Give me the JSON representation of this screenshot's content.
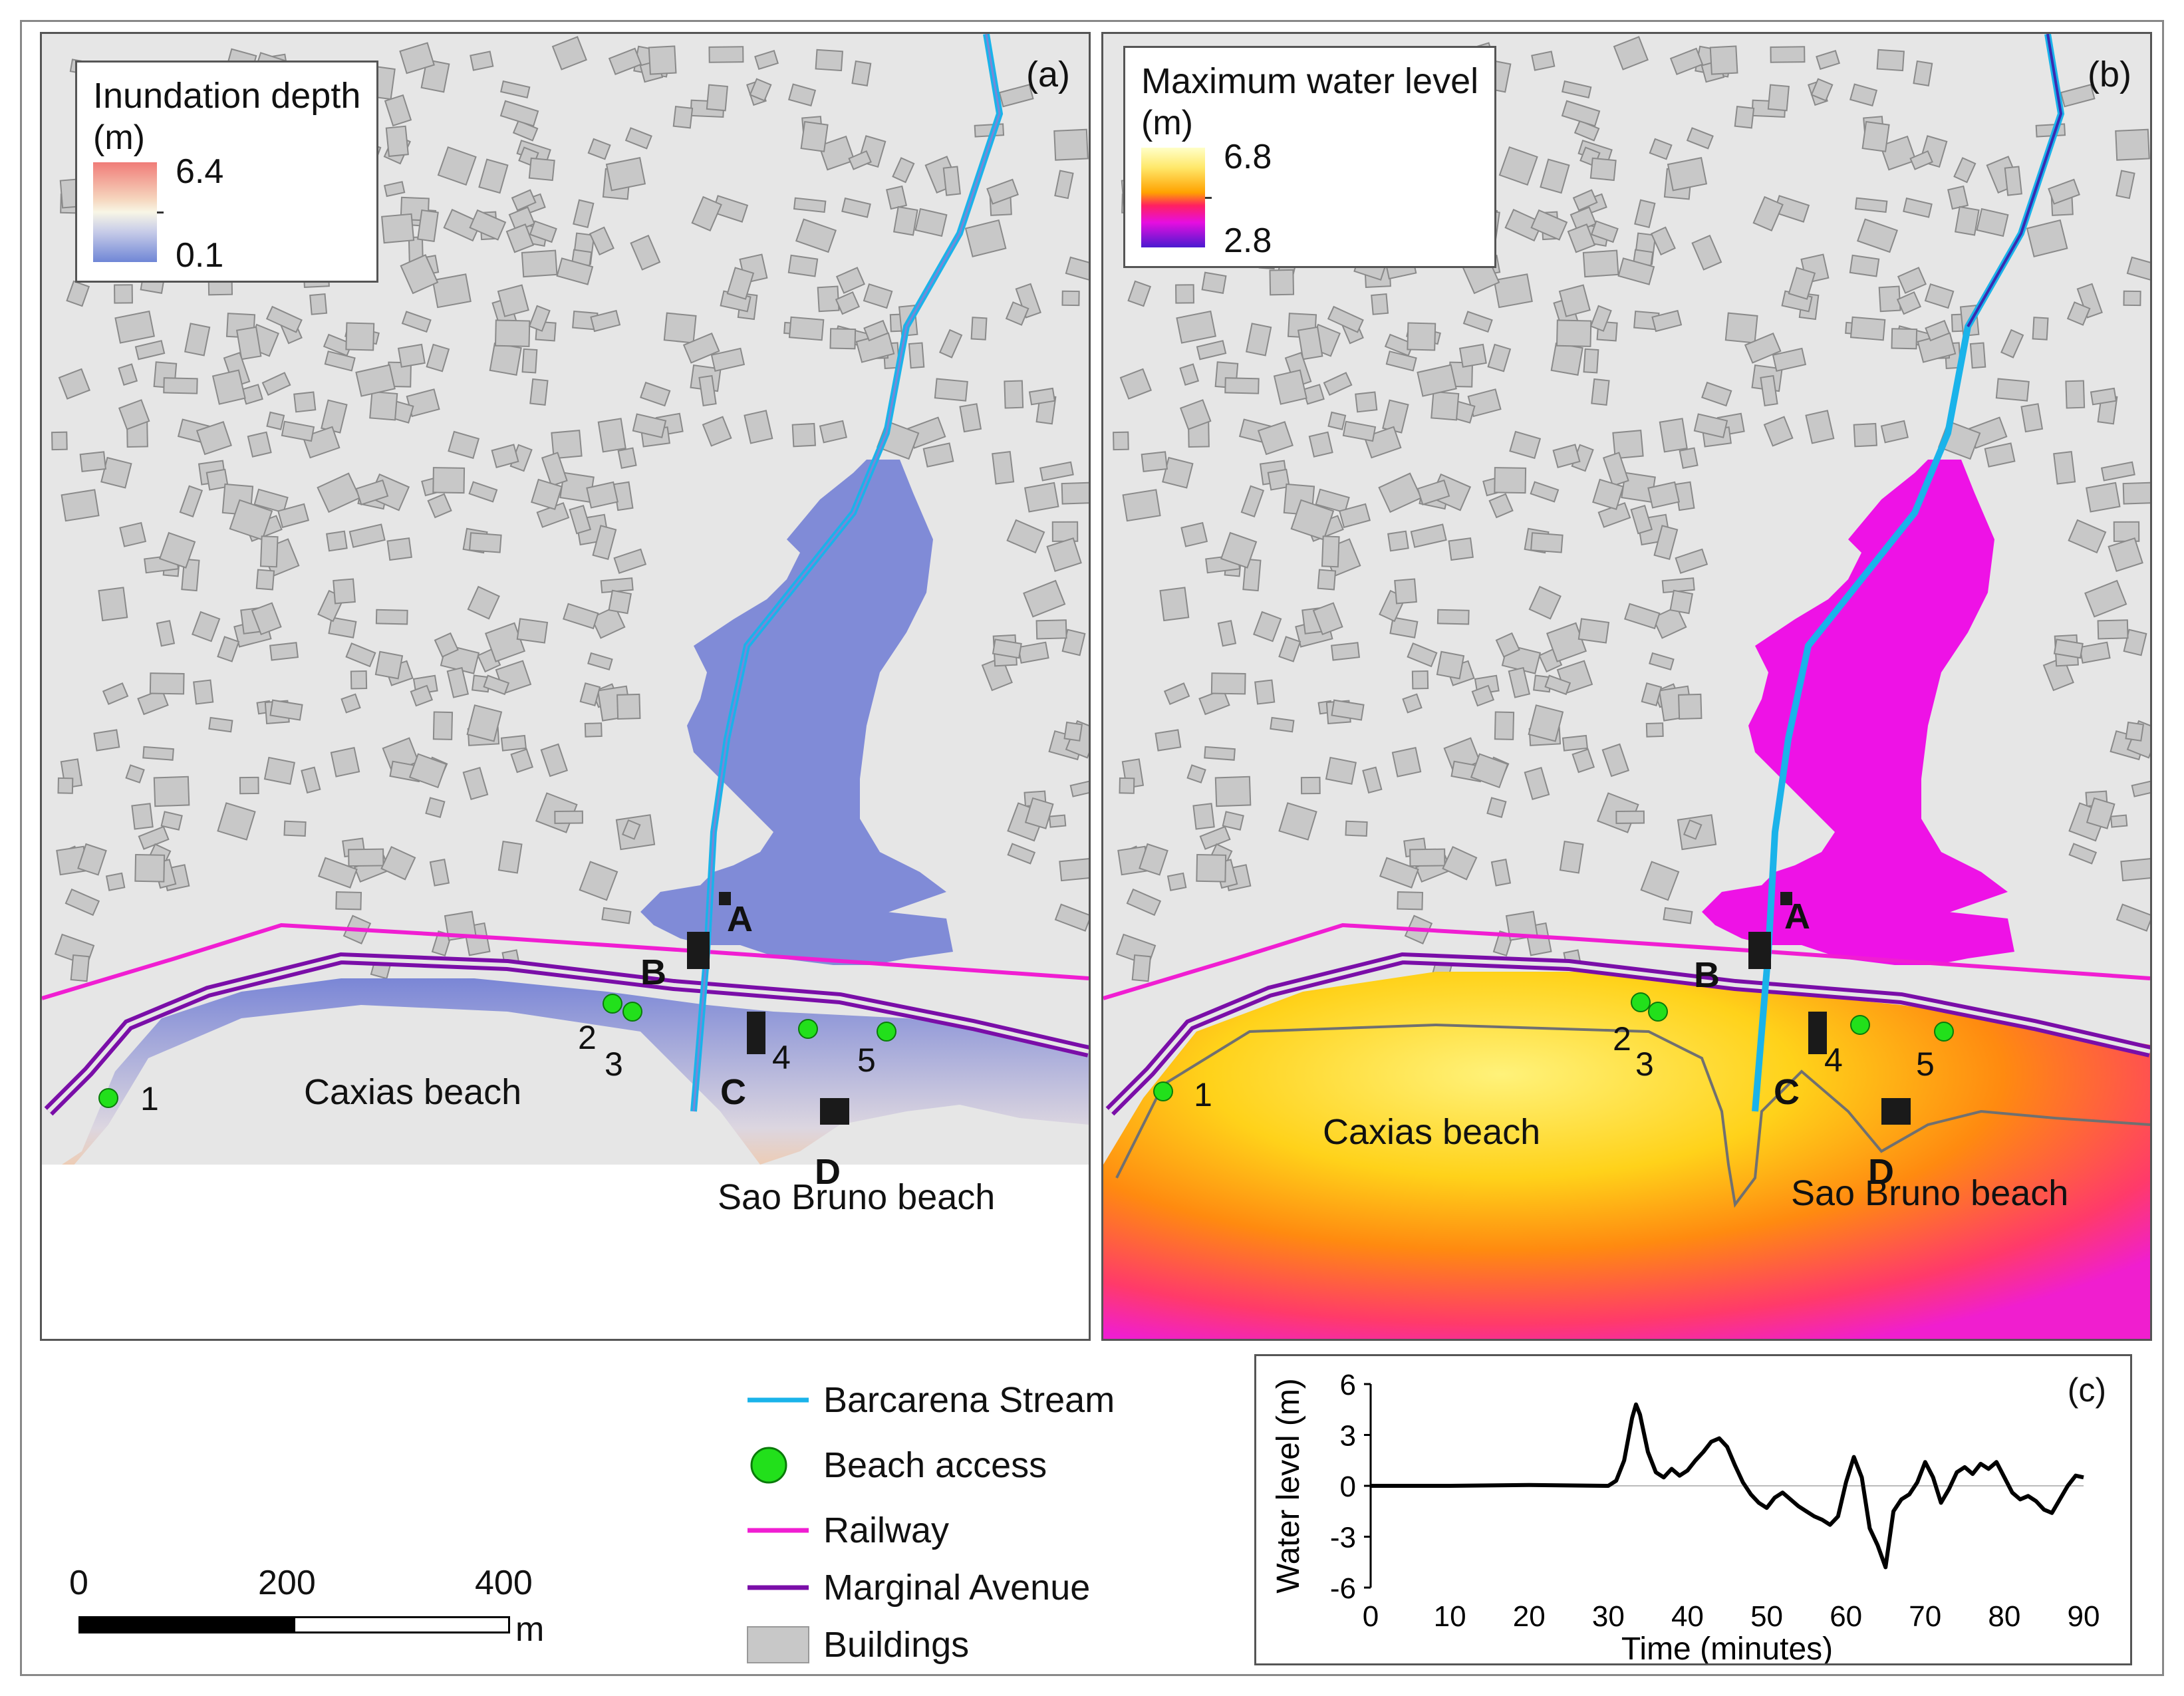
{
  "panel_a": {
    "letter": "(a)",
    "legend": {
      "title": "Inundation depth",
      "unit": "(m)",
      "max": "6.4",
      "min": "0.1"
    }
  },
  "panel_b": {
    "letter": "(b)",
    "legend": {
      "title": "Maximum water level",
      "unit": "(m)",
      "max": "6.8",
      "min": "2.8"
    }
  },
  "map_labels": {
    "caxias": "Caxias beach",
    "sao_bruno": "Sao Bruno beach",
    "sites": [
      "A",
      "B",
      "C",
      "D"
    ],
    "access_points": [
      "1",
      "2",
      "3",
      "4",
      "5"
    ]
  },
  "legend": {
    "items": [
      {
        "label": "Barcarena Stream",
        "symbol": "line",
        "color": "#1ab3ea"
      },
      {
        "label": "Beach access",
        "symbol": "circle",
        "color": "#22e01b"
      },
      {
        "label": "Railway",
        "symbol": "line",
        "color": "#f01ed2"
      },
      {
        "label": "Marginal Avenue",
        "symbol": "line",
        "color": "#7a0ea8"
      },
      {
        "label": "Buildings",
        "symbol": "square",
        "color": "#c8c8c8"
      }
    ]
  },
  "scale_bar": {
    "labels": [
      "0",
      "200",
      "400"
    ],
    "unit": "m"
  },
  "colors": {
    "background": "#e6e6e6",
    "building": "#c8c8c8",
    "stream": "#1ab3ea",
    "railway": "#f01ed2",
    "avenue": "#7a0ea8",
    "access": "#22e01b",
    "inundation": "#7a86d6"
  },
  "chart_data": {
    "type": "line",
    "panel_letter": "(c)",
    "xlabel": "Time (minutes)",
    "ylabel": "Water level (m)",
    "xlim": [
      0,
      90
    ],
    "ylim": [
      -6,
      6
    ],
    "xticks": [
      "0",
      "10",
      "20",
      "30",
      "40",
      "50",
      "60",
      "70",
      "80",
      "90"
    ],
    "yticks": [
      "6",
      "3",
      "0",
      "-3",
      "-6"
    ],
    "series": [
      {
        "x": [
          0,
          10,
          20,
          30,
          31,
          32,
          33,
          33.5,
          34,
          35,
          36,
          37,
          38,
          39,
          40,
          41,
          42,
          43,
          44,
          45,
          46,
          47,
          48,
          49,
          50,
          51,
          52,
          53,
          54,
          55,
          56,
          57,
          58,
          59,
          60,
          61,
          62,
          63,
          64,
          65,
          66,
          67,
          68,
          69,
          70,
          71,
          72,
          73,
          74,
          75,
          76,
          77,
          78,
          79,
          80,
          81,
          82,
          83,
          84,
          85,
          86,
          87,
          88,
          89,
          90
        ],
        "y": [
          0,
          0,
          0.05,
          0,
          0.3,
          1.5,
          4.0,
          4.8,
          4.2,
          2.0,
          0.8,
          0.5,
          1.0,
          0.6,
          0.9,
          1.5,
          2.0,
          2.6,
          2.8,
          2.3,
          1.2,
          0.2,
          -0.5,
          -1.0,
          -1.3,
          -0.7,
          -0.4,
          -0.8,
          -1.2,
          -1.5,
          -1.8,
          -2.0,
          -2.3,
          -1.8,
          0.2,
          1.7,
          0.5,
          -2.5,
          -3.5,
          -4.8,
          -1.5,
          -0.8,
          -0.5,
          0.2,
          1.4,
          0.5,
          -1.0,
          -0.2,
          0.8,
          1.1,
          0.7,
          1.3,
          1.0,
          1.4,
          0.5,
          -0.4,
          -0.8,
          -0.6,
          -0.9,
          -1.4,
          -1.6,
          -0.8,
          0.0,
          0.6,
          0.5
        ]
      }
    ]
  }
}
